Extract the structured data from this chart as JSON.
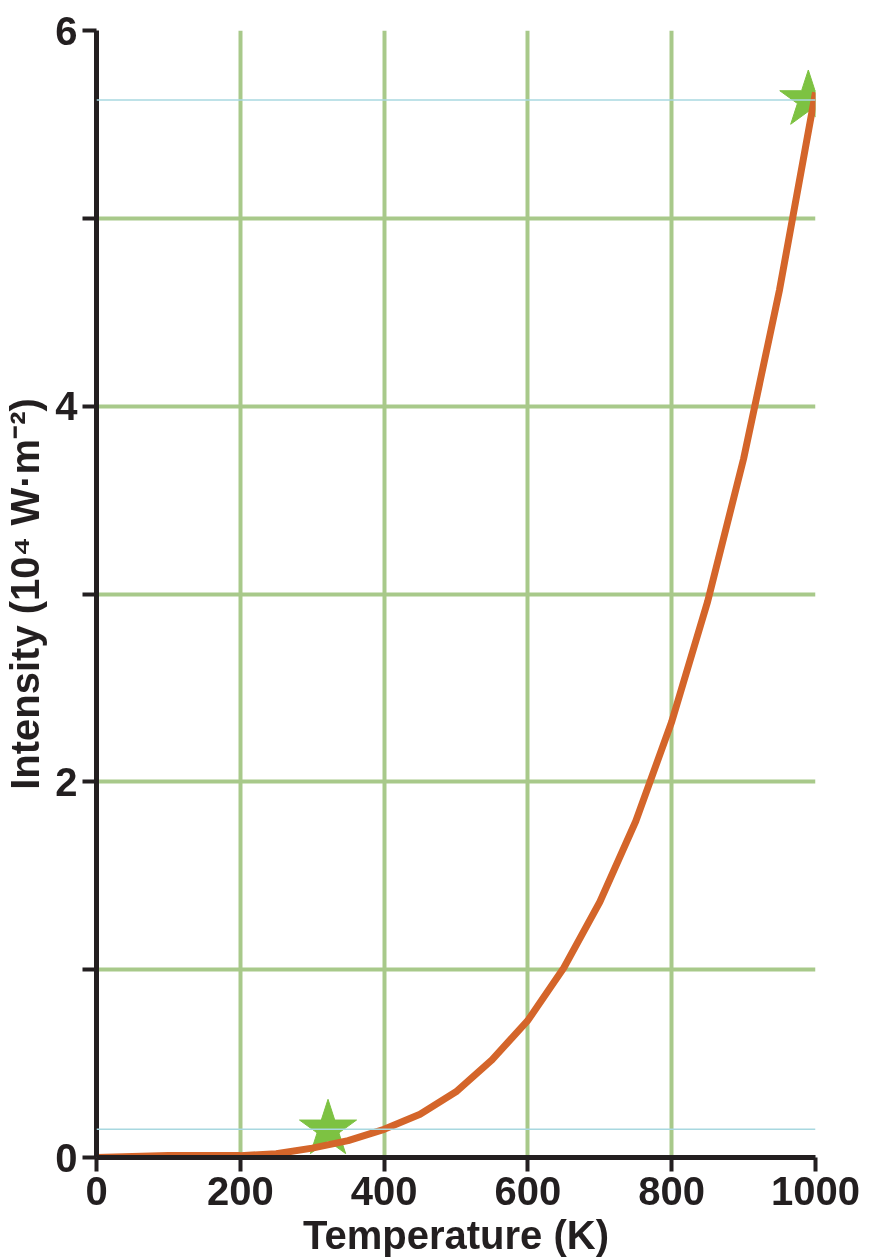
{
  "chart_data": {
    "type": "line",
    "xlabel": "Temperature (K)",
    "ylabel": "Intensity (10⁴ W·m⁻²)",
    "xlim": [
      0,
      1000
    ],
    "ylim": [
      0,
      6
    ],
    "xticks": [
      0,
      200,
      400,
      600,
      800,
      1000
    ],
    "yticks": [
      0,
      {
        "value": 1,
        "label": null
      },
      2,
      {
        "value": 3,
        "label": null
      },
      4,
      {
        "value": 5,
        "label": null
      },
      6
    ],
    "grid": true,
    "line_style": "solid",
    "ref_lines": [
      {
        "axis": "y",
        "value": 5.63,
        "color": "#a8d8e0"
      },
      {
        "axis": "y",
        "value": 0.15,
        "color": "#a8d8e0"
      }
    ],
    "series": [
      {
        "color": "#d4652a",
        "marker": "none",
        "x": [
          0,
          100,
          200,
          250,
          300,
          350,
          400,
          450,
          500,
          550,
          600,
          650,
          700,
          750,
          800,
          850,
          900,
          950,
          1000
        ],
        "values": [
          0,
          0.01,
          0.01,
          0.02,
          0.05,
          0.09,
          0.15,
          0.23,
          0.35,
          0.52,
          0.73,
          1.01,
          1.36,
          1.79,
          2.32,
          2.96,
          3.72,
          4.62,
          5.67
        ]
      },
      {
        "type": "scatter",
        "color": "#7dc242",
        "marker": "star",
        "x": [
          322,
          990
        ],
        "values": [
          0.15,
          5.63
        ]
      }
    ]
  }
}
